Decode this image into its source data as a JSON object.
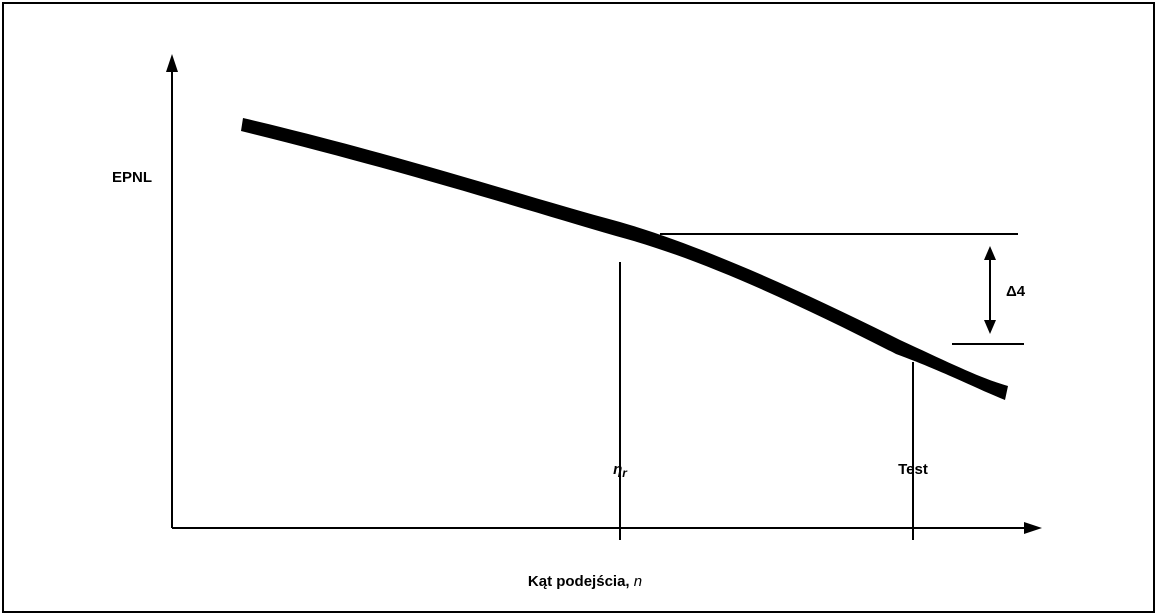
{
  "axes": {
    "y_label": "EPNL",
    "x_label": "Kąt podejścia,",
    "x_label_symbol": "n"
  },
  "markers": {
    "reference": {
      "symbol": "η",
      "subscript": "r"
    },
    "test": "Test",
    "difference": "Δ4"
  }
}
